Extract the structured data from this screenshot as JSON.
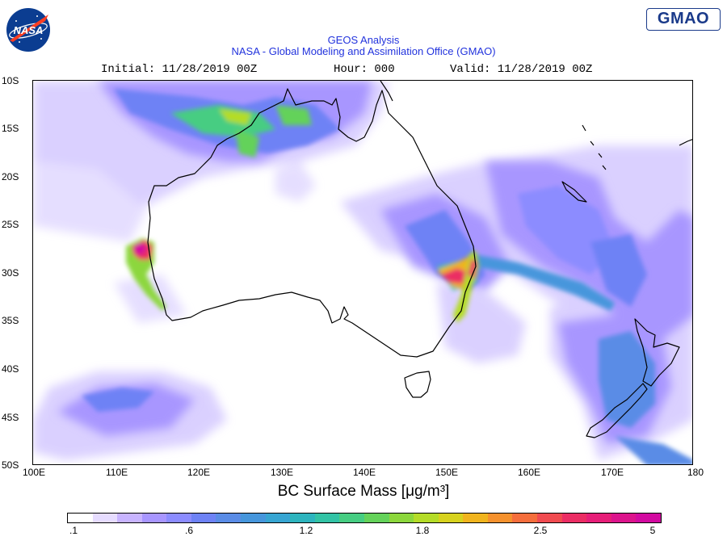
{
  "header": {
    "title_line1": "GEOS Analysis",
    "title_line2": "NASA - Global Modeling and Assimilation Office (GMAO)",
    "initial": "Initial: 11/28/2019 00Z",
    "hour": "Hour: 000",
    "valid": "Valid: 11/28/2019 00Z"
  },
  "logos": {
    "left": "NASA",
    "right": "GMAO"
  },
  "map": {
    "lat_labels": [
      "10S",
      "15S",
      "20S",
      "25S",
      "30S",
      "35S",
      "40S",
      "45S",
      "50S"
    ],
    "lon_labels": [
      "100E",
      "110E",
      "120E",
      "130E",
      "140E",
      "150E",
      "160E",
      "170E",
      "180"
    ],
    "variable_label": "BC Surface Mass [μg/m³]",
    "extent": {
      "lon": [
        100,
        180
      ],
      "lat": [
        -50,
        -10
      ]
    }
  },
  "colorbar": {
    "tick_labels": [
      ".1",
      ".6",
      "1.2",
      "1.8",
      "2.5",
      "5"
    ],
    "colors": [
      "#ffffff",
      "#e6dcff",
      "#c8b4ff",
      "#a896ff",
      "#8c8cff",
      "#6e82f5",
      "#5a8ce6",
      "#4696dc",
      "#37a5d2",
      "#2db4be",
      "#32c3a5",
      "#46cd82",
      "#64d25a",
      "#8cd73c",
      "#b4dc28",
      "#d7d21e",
      "#f0b41e",
      "#f5912d",
      "#f56e3c",
      "#f04b50",
      "#eb2d64",
      "#e61e78",
      "#dc148c",
      "#d20aa0"
    ]
  }
}
